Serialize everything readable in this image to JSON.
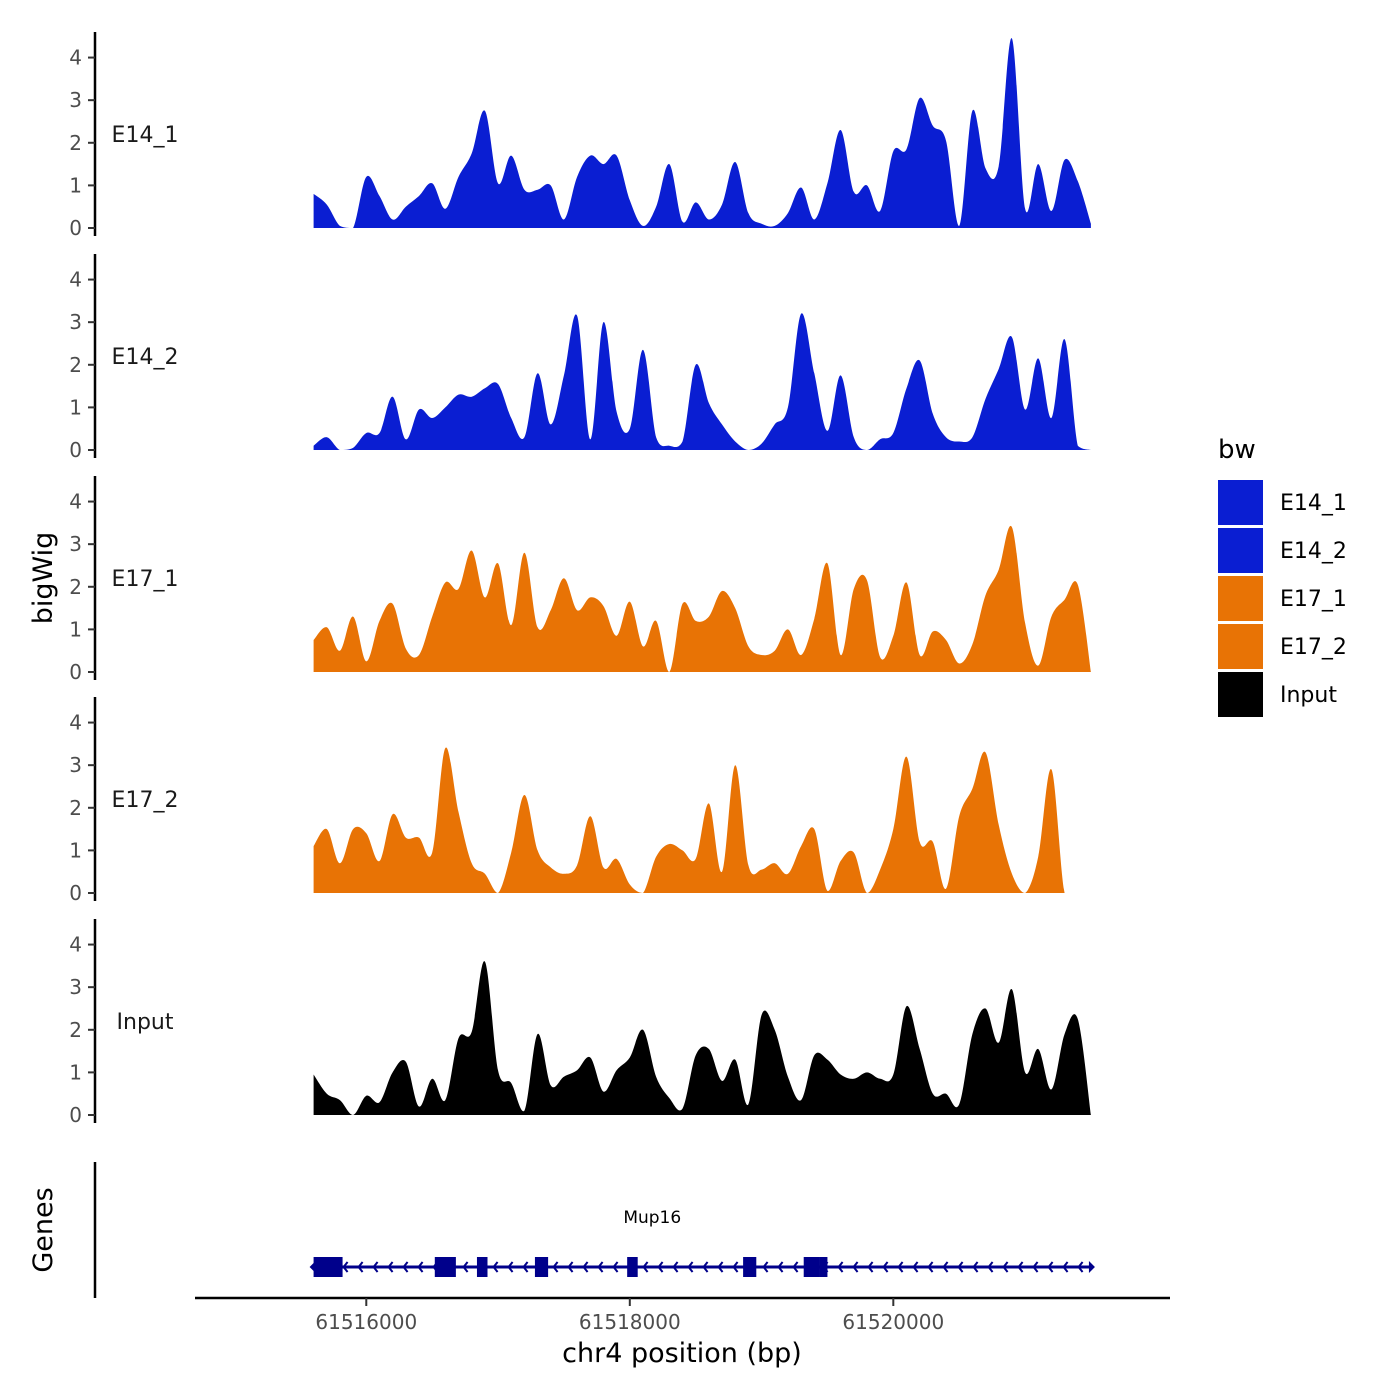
{
  "chart_data": {
    "type": "area",
    "title": "",
    "xlabel": "chr4 position (bp)",
    "ylabel": "bigWig",
    "genes_label": "Genes",
    "xlim": [
      61514700,
      61522100
    ],
    "ylim": [
      0,
      4.6
    ],
    "x_tick_values": [
      61516000,
      61518000,
      61520000
    ],
    "x_tick_labels": [
      "61516000",
      "61518000",
      "61520000"
    ],
    "y_tick_labels": [
      "0",
      "1",
      "2",
      "3",
      "4"
    ],
    "legend": {
      "title": "bw",
      "items": [
        {
          "label": "E14_1",
          "color": "#0A1ED2"
        },
        {
          "label": "E14_2",
          "color": "#0A1ED2"
        },
        {
          "label": "E17_1",
          "color": "#E87305"
        },
        {
          "label": "E17_2",
          "color": "#E87305"
        },
        {
          "label": "Input",
          "color": "#000000"
        }
      ]
    },
    "series": [
      {
        "name": "E14_1",
        "color": "#0A1ED2",
        "x": [
          61515600,
          61515700,
          61515800,
          61515900,
          61516000,
          61516100,
          61516200,
          61516300,
          61516400,
          61516500,
          61516600,
          61516700,
          61516800,
          61516900,
          61517000,
          61517100,
          61517200,
          61517300,
          61517400,
          61517500,
          61517600,
          61517700,
          61517800,
          61517900,
          61518000,
          61518100,
          61518200,
          61518300,
          61518400,
          61518500,
          61518600,
          61518700,
          61518800,
          61518900,
          61519000,
          61519100,
          61519200,
          61519300,
          61519400,
          61519500,
          61519600,
          61519700,
          61519800,
          61519900,
          61520000,
          61520100,
          61520200,
          61520300,
          61520400,
          61520500,
          61520600,
          61520700,
          61520800,
          61520900,
          61521000,
          61521100,
          61521200,
          61521300,
          61521400,
          61521500
        ],
        "y": [
          0.8,
          0.55,
          0.05,
          0,
          1.2,
          0.75,
          0.2,
          0.5,
          0.75,
          1.05,
          0.45,
          1.2,
          1.75,
          2.75,
          1.05,
          1.7,
          0.9,
          0.9,
          1.0,
          0.2,
          1.2,
          1.7,
          1.5,
          1.7,
          0.65,
          0.05,
          0.5,
          1.5,
          0.15,
          0.6,
          0.2,
          0.55,
          1.55,
          0.35,
          0.1,
          0.05,
          0.35,
          0.95,
          0.2,
          1.05,
          2.3,
          0.85,
          1.0,
          0.4,
          1.8,
          1.85,
          3.05,
          2.4,
          2.05,
          0.05,
          2.75,
          1.4,
          1.45,
          4.45,
          0.45,
          1.5,
          0.4,
          1.6,
          1.1,
          0.1
        ]
      },
      {
        "name": "E14_2",
        "color": "#0A1ED2",
        "x": [
          61515600,
          61515700,
          61515800,
          61515900,
          61516000,
          61516100,
          61516200,
          61516300,
          61516400,
          61516500,
          61516600,
          61516700,
          61516800,
          61516900,
          61517000,
          61517100,
          61517200,
          61517300,
          61517400,
          61517500,
          61517600,
          61517700,
          61517800,
          61517900,
          61518000,
          61518100,
          61518200,
          61518300,
          61518400,
          61518500,
          61518600,
          61518700,
          61518800,
          61518900,
          61519000,
          61519100,
          61519200,
          61519300,
          61519400,
          61519500,
          61519600,
          61519700,
          61519800,
          61519900,
          61520000,
          61520100,
          61520200,
          61520300,
          61520400,
          61520500,
          61520600,
          61520700,
          61520800,
          61520900,
          61521000,
          61521100,
          61521200,
          61521300,
          61521400,
          61521500
        ],
        "y": [
          0.1,
          0.3,
          0.0,
          0.05,
          0.4,
          0.4,
          1.25,
          0.25,
          0.95,
          0.75,
          1.0,
          1.3,
          1.25,
          1.45,
          1.55,
          0.75,
          0.3,
          1.8,
          0.6,
          1.75,
          3.15,
          0.25,
          3.0,
          0.9,
          0.5,
          2.35,
          0.3,
          0.1,
          0.2,
          2.0,
          1.1,
          0.6,
          0.2,
          0.0,
          0.15,
          0.6,
          1.0,
          3.2,
          1.8,
          0.45,
          1.75,
          0.3,
          0.0,
          0.25,
          0.4,
          1.45,
          2.1,
          0.85,
          0.3,
          0.2,
          0.3,
          1.2,
          1.9,
          2.65,
          0.95,
          2.15,
          0.75,
          2.6,
          0.1,
          0.0
        ]
      },
      {
        "name": "E17_1",
        "color": "#E87305",
        "x": [
          61515600,
          61515700,
          61515800,
          61515900,
          61516000,
          61516100,
          61516200,
          61516300,
          61516400,
          61516500,
          61516600,
          61516700,
          61516800,
          61516900,
          61517000,
          61517100,
          61517200,
          61517300,
          61517400,
          61517500,
          61517600,
          61517700,
          61517800,
          61517900,
          61518000,
          61518100,
          61518200,
          61518300,
          61518400,
          61518500,
          61518600,
          61518700,
          61518800,
          61518900,
          61519000,
          61519100,
          61519200,
          61519300,
          61519400,
          61519500,
          61519600,
          61519700,
          61519800,
          61519900,
          61520000,
          61520100,
          61520200,
          61520300,
          61520400,
          61520500,
          61520600,
          61520700,
          61520800,
          61520900,
          61521000,
          61521100,
          61521200,
          61521300,
          61521400,
          61521500
        ],
        "y": [
          0.75,
          1.05,
          0.5,
          1.3,
          0.25,
          1.2,
          1.6,
          0.55,
          0.4,
          1.3,
          2.1,
          1.95,
          2.85,
          1.75,
          2.55,
          1.1,
          2.8,
          1.05,
          1.45,
          2.2,
          1.45,
          1.75,
          1.55,
          0.85,
          1.65,
          0.6,
          1.2,
          0.0,
          1.6,
          1.2,
          1.3,
          1.9,
          1.5,
          0.6,
          0.4,
          0.5,
          1.0,
          0.4,
          1.25,
          2.55,
          0.4,
          1.95,
          2.15,
          0.35,
          0.85,
          2.1,
          0.4,
          0.95,
          0.75,
          0.2,
          0.65,
          1.8,
          2.4,
          3.4,
          1.15,
          0.15,
          1.3,
          1.7,
          2.05,
          0.0
        ]
      },
      {
        "name": "E17_2",
        "color": "#E87305",
        "x": [
          61515600,
          61515700,
          61515800,
          61515900,
          61516000,
          61516100,
          61516200,
          61516300,
          61516400,
          61516500,
          61516600,
          61516700,
          61516800,
          61516900,
          61517000,
          61517100,
          61517200,
          61517300,
          61517400,
          61517500,
          61517600,
          61517700,
          61517800,
          61517900,
          61518000,
          61518100,
          61518200,
          61518300,
          61518400,
          61518500,
          61518600,
          61518700,
          61518800,
          61518900,
          61519000,
          61519100,
          61519200,
          61519300,
          61519400,
          61519500,
          61519600,
          61519700,
          61519800,
          61519900,
          61520000,
          61520100,
          61520200,
          61520300,
          61520400,
          61520500,
          61520600,
          61520700,
          61520800,
          61520900,
          61521000,
          61521100,
          61521200,
          61521300,
          61521400,
          61521500
        ],
        "y": [
          1.1,
          1.5,
          0.7,
          1.5,
          1.4,
          0.75,
          1.85,
          1.3,
          1.3,
          0.95,
          3.4,
          1.9,
          0.7,
          0.45,
          0.0,
          0.95,
          2.3,
          1.0,
          0.6,
          0.45,
          0.65,
          1.8,
          0.6,
          0.8,
          0.2,
          0.0,
          0.85,
          1.15,
          1.0,
          0.8,
          2.1,
          0.5,
          3.0,
          0.65,
          0.55,
          0.7,
          0.45,
          1.1,
          1.5,
          0.05,
          0.75,
          0.95,
          0.0,
          0.55,
          1.5,
          3.2,
          1.2,
          1.2,
          0.1,
          1.8,
          2.45,
          3.3,
          1.6,
          0.45,
          0.0,
          0.85,
          2.9,
          0.0,
          0.0,
          0.0
        ]
      },
      {
        "name": "Input",
        "color": "#000000",
        "x": [
          61515600,
          61515700,
          61515800,
          61515900,
          61516000,
          61516100,
          61516200,
          61516300,
          61516400,
          61516500,
          61516600,
          61516700,
          61516800,
          61516900,
          61517000,
          61517100,
          61517200,
          61517300,
          61517400,
          61517500,
          61517600,
          61517700,
          61517800,
          61517900,
          61518000,
          61518100,
          61518200,
          61518300,
          61518400,
          61518500,
          61518600,
          61518700,
          61518800,
          61518900,
          61519000,
          61519100,
          61519200,
          61519300,
          61519400,
          61519500,
          61519600,
          61519700,
          61519800,
          61519900,
          61520000,
          61520100,
          61520200,
          61520300,
          61520400,
          61520500,
          61520600,
          61520700,
          61520800,
          61520900,
          61521000,
          61521100,
          61521200,
          61521300,
          61521400,
          61521500
        ],
        "y": [
          0.95,
          0.5,
          0.35,
          0.0,
          0.45,
          0.3,
          1.0,
          1.25,
          0.2,
          0.85,
          0.35,
          1.8,
          1.95,
          3.6,
          1.05,
          0.75,
          0.1,
          1.9,
          0.7,
          0.9,
          1.05,
          1.35,
          0.55,
          1.05,
          1.35,
          2.0,
          0.9,
          0.4,
          0.15,
          1.4,
          1.55,
          0.8,
          1.3,
          0.25,
          2.35,
          2.0,
          0.9,
          0.35,
          1.4,
          1.3,
          0.95,
          0.85,
          1.0,
          0.85,
          0.95,
          2.55,
          1.55,
          0.5,
          0.5,
          0.25,
          1.9,
          2.5,
          1.7,
          2.95,
          1.0,
          1.55,
          0.6,
          1.9,
          2.25,
          0.0
        ]
      }
    ],
    "genes": [
      {
        "name": "Mup16",
        "start": 61515600,
        "end": 61521500,
        "strand": "-",
        "color": "#00008B",
        "exons": [
          [
            61515600,
            61515820
          ],
          [
            61516520,
            61516680
          ],
          [
            61516840,
            61516920
          ],
          [
            61517280,
            61517380
          ],
          [
            61517980,
            61518060
          ],
          [
            61518860,
            61518960
          ],
          [
            61519320,
            61519440
          ],
          [
            61519440,
            61519500
          ]
        ]
      }
    ]
  }
}
